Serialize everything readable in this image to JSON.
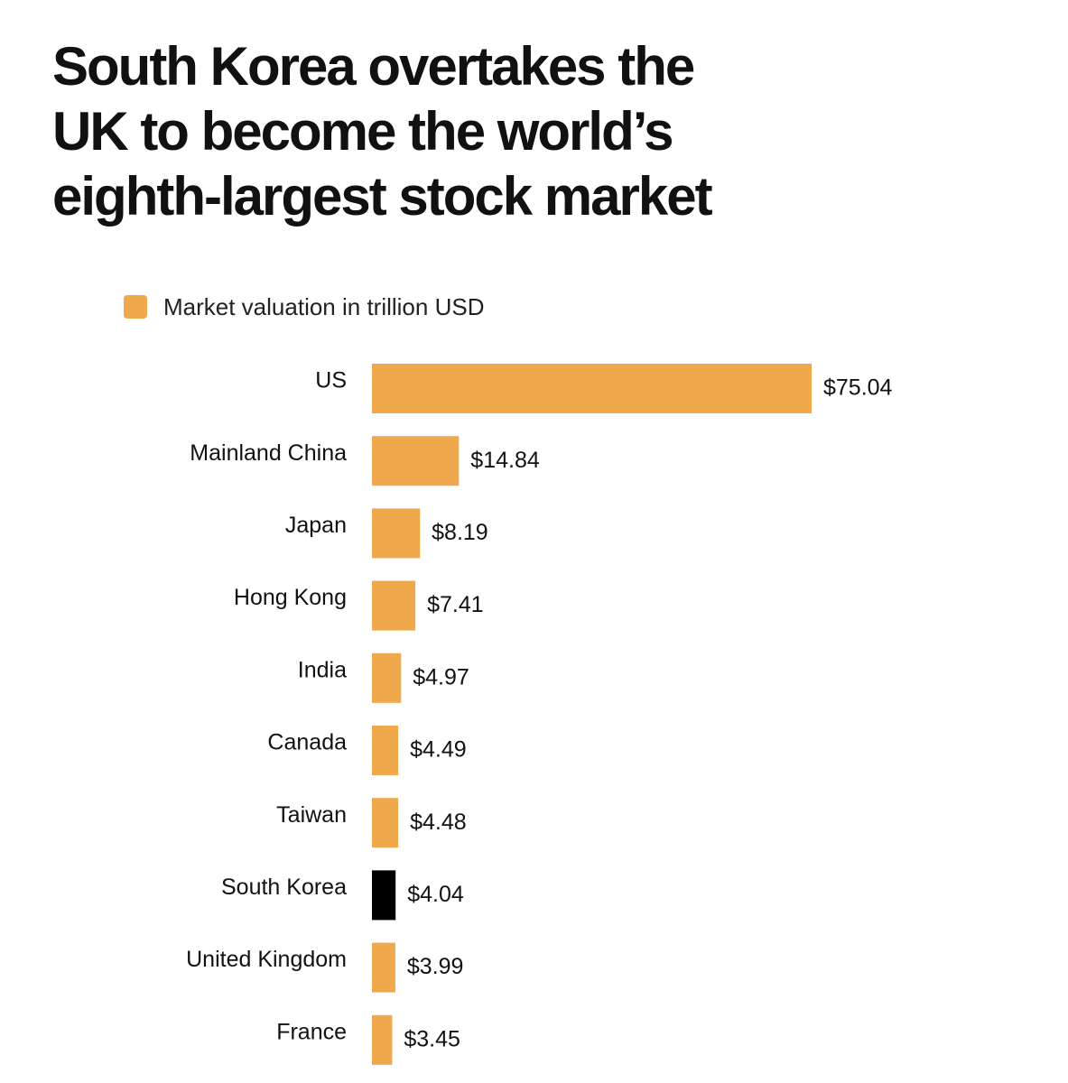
{
  "title_lines": [
    "South Korea overtakes the",
    "UK to become the world’s",
    "eighth-largest stock market"
  ],
  "legend": {
    "label": "Market valuation in trillion USD",
    "color": "#f0a84d"
  },
  "colors": {
    "bar": "#f0a84d",
    "highlight": "#000000",
    "text": "#111111"
  },
  "chart_data": {
    "type": "bar",
    "orientation": "horizontal",
    "title": "South Korea overtakes the UK to become the world’s eighth-largest stock market",
    "xlabel": "",
    "ylabel": "",
    "xlim": [
      0,
      75.04
    ],
    "grid": false,
    "legend_position": "top-left",
    "categories": [
      "US",
      "Mainland China",
      "Japan",
      "Hong Kong",
      "India",
      "Canada",
      "Taiwan",
      "South Korea",
      "United Kingdom",
      "France"
    ],
    "series": [
      {
        "name": "Market valuation in trillion USD",
        "values": [
          75.04,
          14.84,
          8.19,
          7.41,
          4.97,
          4.49,
          4.48,
          4.04,
          3.99,
          3.45
        ]
      }
    ],
    "data_labels": [
      "$75.04",
      "$14.84",
      "$8.19",
      "$7.41",
      "$4.97",
      "$4.49",
      "$4.48",
      "$4.04",
      "$3.99",
      "$3.45"
    ],
    "highlight_category": "South Korea"
  }
}
